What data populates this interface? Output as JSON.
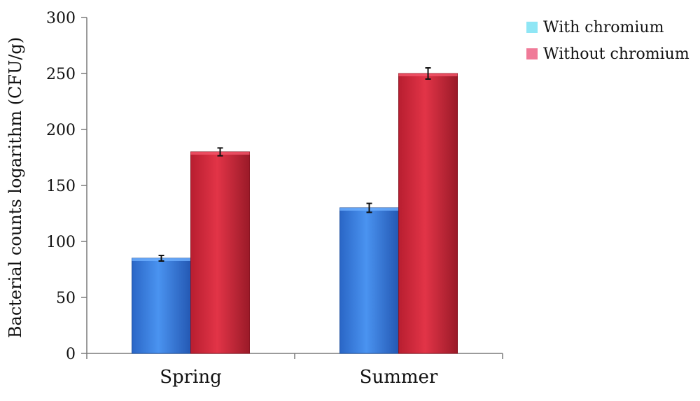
{
  "chart_data": {
    "type": "bar",
    "categories": [
      "Spring",
      "Summer"
    ],
    "series": [
      {
        "name": "With chromium",
        "values": [
          85,
          130
        ],
        "errors": [
          2.5,
          4
        ],
        "color": "#3a7fe0",
        "legend_color": "#8fe6f5"
      },
      {
        "name": "Without chromium",
        "values": [
          180,
          250
        ],
        "errors": [
          3.5,
          5
        ],
        "color": "#d42a3c",
        "legend_color": "#f07a98"
      }
    ],
    "title": "",
    "xlabel": "",
    "ylabel": "Bacterial counts logarithm (CFU/g)",
    "ylim": [
      0,
      300
    ],
    "yticks": [
      0,
      50,
      100,
      150,
      200,
      250,
      300
    ],
    "grid": false,
    "legend_position": "top-right"
  }
}
